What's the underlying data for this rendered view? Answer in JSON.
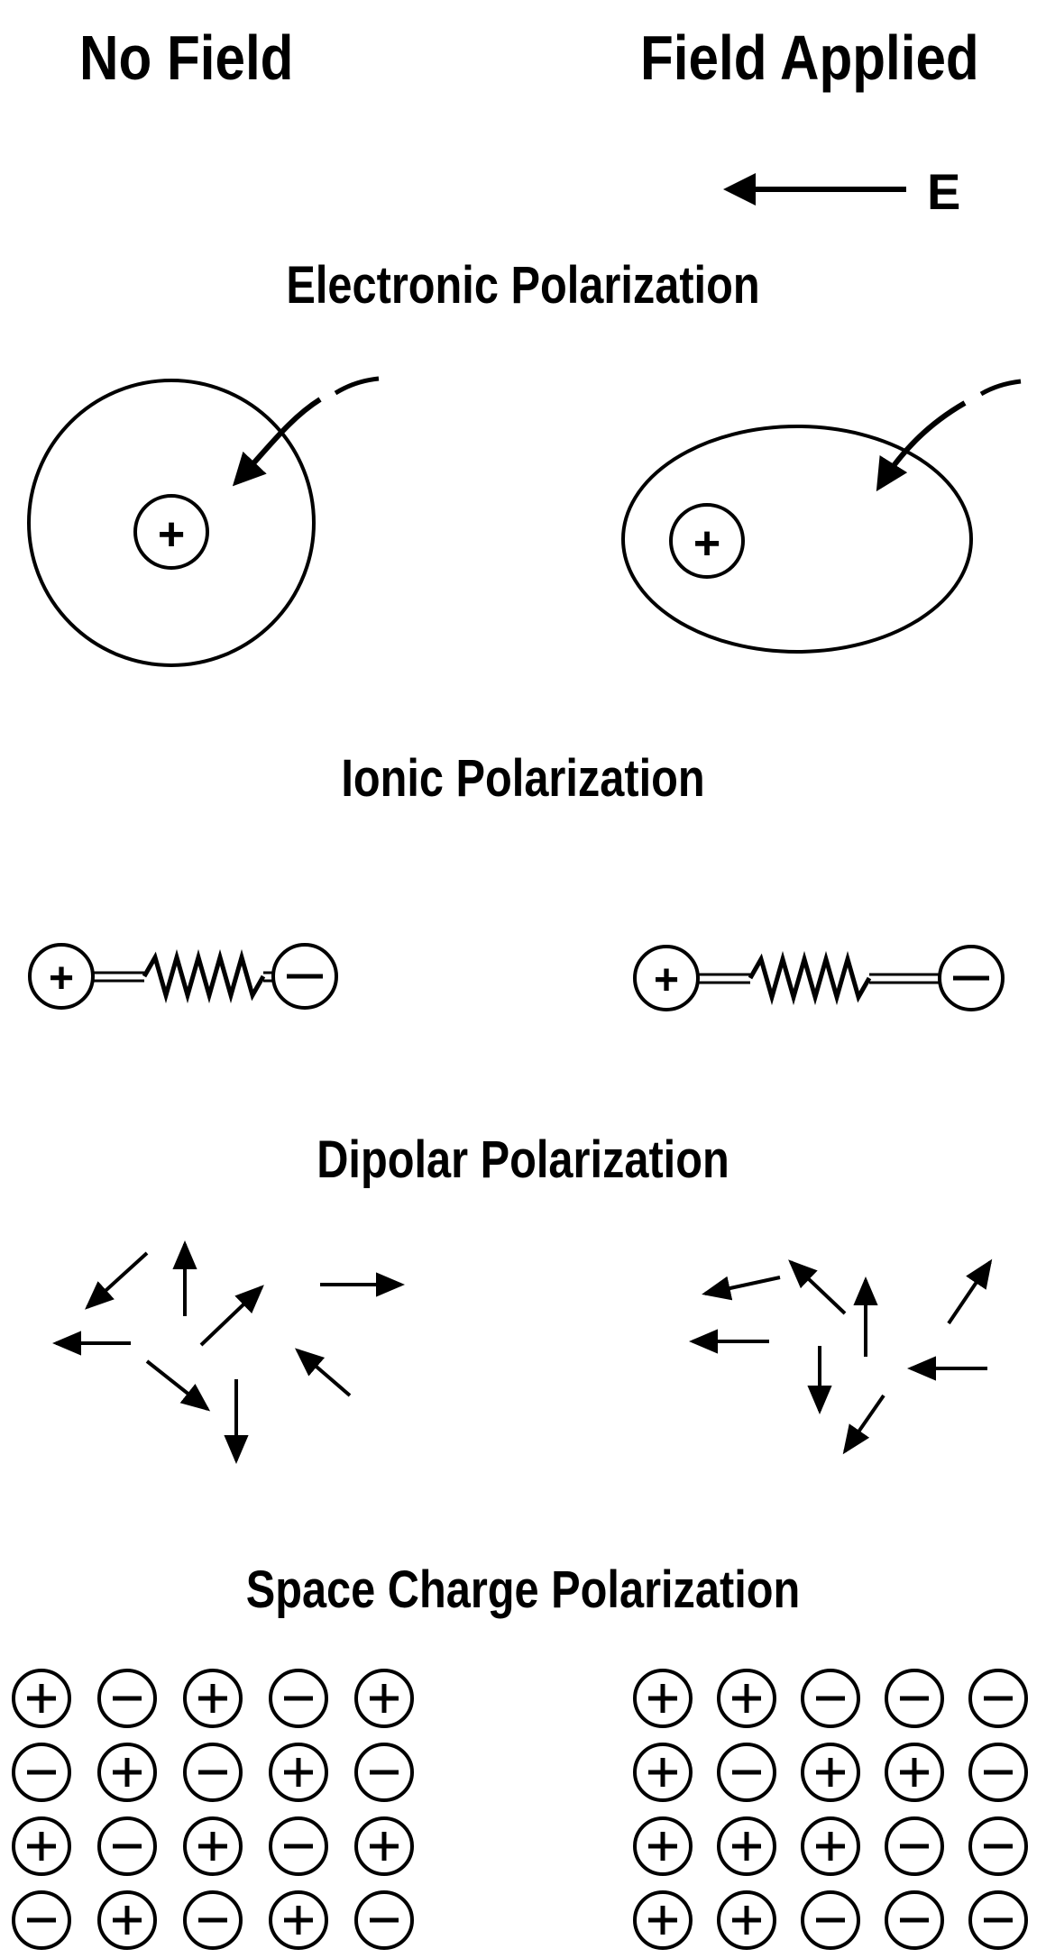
{
  "headers": {
    "no_field": "No Field",
    "field_applied": "Field Applied"
  },
  "field_label": "E",
  "sections": {
    "electronic": "Electronic Polarization",
    "ionic": "Ionic Polarization",
    "dipolar": "Dipolar Polarization",
    "space_charge": "Space Charge Polarization"
  },
  "symbols": {
    "positive": "+",
    "negative": "−"
  },
  "space_charge": {
    "no_field": [
      [
        "+",
        "-",
        "+",
        "-",
        "+"
      ],
      [
        "-",
        "+",
        "-",
        "+",
        "-"
      ],
      [
        "+",
        "-",
        "+",
        "-",
        "+"
      ],
      [
        "-",
        "+",
        "-",
        "+",
        "-"
      ]
    ],
    "field_applied": [
      [
        "+",
        "+",
        "-",
        "-",
        "-"
      ],
      [
        "+",
        "-",
        "+",
        "+",
        "-"
      ],
      [
        "+",
        "+",
        "+",
        "-",
        "-"
      ],
      [
        "+",
        "+",
        "-",
        "-",
        "-"
      ]
    ]
  },
  "colors": {
    "ink": "#000000",
    "background": "#ffffff"
  }
}
